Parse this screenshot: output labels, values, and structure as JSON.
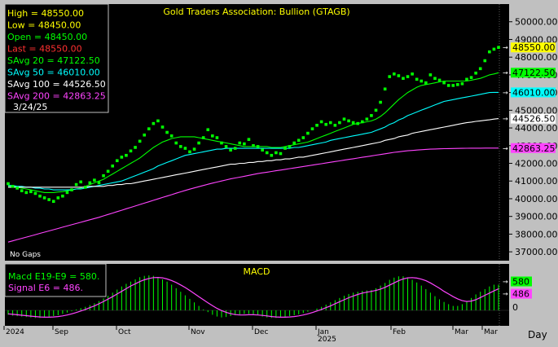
{
  "title": "Gold Traders Association: Bullion (GTAGB)",
  "info_box": {
    "lines": [
      {
        "label": "High",
        "value": "48550.00",
        "color": "#ffff00"
      },
      {
        "label": "Low",
        "value": "48450.00",
        "color": "#ffff00"
      },
      {
        "label": "Open",
        "value": "48450.00",
        "color": "#00ff00"
      },
      {
        "label": "Last",
        "value": "48550.00",
        "color": "#ff3030"
      },
      {
        "label": "SAvg 20",
        "value": "47122.50",
        "color": "#00ff00"
      },
      {
        "label": "SAvg 50",
        "value": "46010.00",
        "color": "#00ffff"
      },
      {
        "label": "SAvg 100",
        "value": "44526.50",
        "color": "#ffffff"
      },
      {
        "label": "SAvg 200",
        "value": "42863.25",
        "color": "#ff44ff"
      }
    ],
    "date": "3/24/25"
  },
  "no_gaps_label": "No Gaps",
  "macd_panel": {
    "title": "MACD",
    "legend": [
      {
        "text": "Macd  E19-E9  =  580.",
        "color": "#00ff00"
      },
      {
        "text": "Signal  E6  =  486.",
        "color": "#ff44ff"
      }
    ],
    "right_labels": [
      {
        "text": "580",
        "bg": "#00ff00",
        "fg": "#000000"
      },
      {
        "text": "486",
        "bg": "#ff44ff",
        "fg": "#000000"
      }
    ],
    "zero_label": "0"
  },
  "price_tags": [
    {
      "text": "48550.00",
      "bg": "#ffff00",
      "fg": "#000000"
    },
    {
      "text": "47122.50",
      "bg": "#00ff00",
      "fg": "#000000"
    },
    {
      "text": "46010.00",
      "bg": "#00ffff",
      "fg": "#000000"
    },
    {
      "text": "44526.50",
      "bg": "#ffffff",
      "fg": "#000000"
    },
    {
      "text": "42863.25",
      "bg": "#ff44ff",
      "fg": "#000000"
    }
  ],
  "colors": {
    "background": "#000000",
    "frame": "#c0c0c0",
    "price_dots": "#00ff00",
    "savg20": "#00ff00",
    "savg50": "#00ffff",
    "savg100": "#ffffff",
    "savg200": "#ff44ff",
    "macd": "#00ff00",
    "signal": "#ff44ff"
  },
  "chart_data": [
    {
      "type": "scatter",
      "title": "Gold Traders Association: Bullion (GTAGB)",
      "ylim": [
        36500,
        51000
      ],
      "y_ticks": [
        "37000.00",
        "38000.00",
        "39000.00",
        "40000.00",
        "41000.00",
        "42000.00",
        "43000.00",
        "44000.00",
        "45000.00",
        "46000.00",
        "47000.00",
        "48000.00",
        "49000.00",
        "50000.00"
      ],
      "x_tick_labels": [
        "2024",
        "Sep",
        "Oct",
        "Nov",
        "Dec",
        "Jan",
        "2025",
        "Feb",
        "Mar",
        "Mar"
      ],
      "x_axis_label": "Day",
      "price_series": {
        "name": "Last",
        "values": [
          40850,
          40700,
          40600,
          40450,
          40350,
          40400,
          40300,
          40150,
          40050,
          39950,
          39850,
          40050,
          40150,
          40350,
          40500,
          40800,
          40950,
          40650,
          40900,
          41050,
          40900,
          41300,
          41550,
          41850,
          42150,
          42350,
          42450,
          42700,
          42900,
          43250,
          43600,
          43950,
          44250,
          44400,
          44050,
          43750,
          43550,
          43150,
          42950,
          42850,
          42650,
          42800,
          43150,
          43450,
          43900,
          43550,
          43450,
          43150,
          42950,
          42750,
          42850,
          43150,
          43100,
          43350,
          43000,
          42950,
          42750,
          42600,
          42450,
          42600,
          42550,
          42850,
          42950,
          43150,
          43300,
          43450,
          43700,
          43950,
          44150,
          44350,
          44200,
          44300,
          44150,
          44300,
          44500,
          44400,
          44300,
          44250,
          44350,
          44500,
          44700,
          45000,
          45450,
          46200,
          46900,
          47050,
          46950,
          46800,
          46900,
          47050,
          46750,
          46650,
          46550,
          47000,
          46800,
          46700,
          46550,
          46400,
          46400,
          46450,
          46500,
          46750,
          46850,
          47100,
          47350,
          47800,
          48300,
          48450,
          48550
        ]
      },
      "sma_series": [
        {
          "name": "SAvg 20",
          "values": [
            40700,
            40700,
            40650,
            40600,
            40550,
            40500,
            40450,
            40400,
            40350,
            40350,
            40350,
            40380,
            40400,
            40450,
            40500,
            40550,
            40600,
            40700,
            40800,
            40900,
            41000,
            41100,
            41250,
            41400,
            41550,
            41700,
            41850,
            42000,
            42150,
            42300,
            42500,
            42700,
            42900,
            43050,
            43200,
            43300,
            43400,
            43450,
            43500,
            43500,
            43500,
            43500,
            43450,
            43400,
            43350,
            43300,
            43250,
            43200,
            43150,
            43100,
            43050,
            43000,
            42950,
            42950,
            42950,
            42950,
            42950,
            42950,
            42900,
            42900,
            42900,
            42950,
            43000,
            43050,
            43100,
            43150,
            43200,
            43300,
            43400,
            43500,
            43600,
            43700,
            43800,
            43900,
            44000,
            44100,
            44200,
            44250,
            44300,
            44350,
            44400,
            44500,
            44650,
            44850,
            45100,
            45350,
            45600,
            45800,
            46000,
            46150,
            46300,
            46400,
            46450,
            46500,
            46550,
            46600,
            46650,
            46650,
            46650,
            46650,
            46650,
            46650,
            46700,
            46750,
            46800,
            46900,
            47000,
            47050,
            47120
          ]
        },
        {
          "name": "SAvg 50",
          "values": [
            40750,
            40750,
            40700,
            40700,
            40650,
            40650,
            40600,
            40600,
            40550,
            40550,
            40500,
            40500,
            40500,
            40500,
            40500,
            40550,
            40550,
            40600,
            40650,
            40700,
            40750,
            40800,
            40850,
            40900,
            40950,
            41000,
            41100,
            41200,
            41300,
            41400,
            41500,
            41600,
            41700,
            41850,
            41950,
            42050,
            42150,
            42250,
            42350,
            42450,
            42500,
            42550,
            42600,
            42650,
            42700,
            42750,
            42800,
            42800,
            42850,
            42850,
            42850,
            42850,
            42850,
            42850,
            42850,
            42850,
            42850,
            42850,
            42850,
            42850,
            42850,
            42850,
            42850,
            42900,
            42900,
            42950,
            43000,
            43050,
            43100,
            43150,
            43200,
            43300,
            43350,
            43400,
            43450,
            43500,
            43550,
            43600,
            43650,
            43700,
            43750,
            43850,
            43950,
            44050,
            44200,
            44300,
            44450,
            44550,
            44700,
            44800,
            44900,
            45000,
            45100,
            45200,
            45300,
            45400,
            45500,
            45550,
            45600,
            45650,
            45700,
            45750,
            45800,
            45850,
            45900,
            45950,
            46000,
            46010,
            46010
          ]
        },
        {
          "name": "SAvg 100",
          "values": [
            40650,
            40650,
            40650,
            40650,
            40650,
            40650,
            40650,
            40650,
            40650,
            40650,
            40650,
            40650,
            40650,
            40650,
            40650,
            40650,
            40650,
            40650,
            40700,
            40700,
            40700,
            40700,
            40750,
            40750,
            40800,
            40800,
            40850,
            40850,
            40900,
            40950,
            41000,
            41050,
            41100,
            41150,
            41200,
            41250,
            41300,
            41350,
            41400,
            41450,
            41500,
            41550,
            41600,
            41650,
            41700,
            41750,
            41800,
            41850,
            41900,
            41950,
            41950,
            42000,
            42000,
            42050,
            42050,
            42100,
            42100,
            42150,
            42150,
            42200,
            42200,
            42250,
            42250,
            42300,
            42350,
            42350,
            42400,
            42450,
            42500,
            42550,
            42600,
            42650,
            42700,
            42750,
            42800,
            42850,
            42900,
            42950,
            43000,
            43050,
            43100,
            43150,
            43200,
            43300,
            43350,
            43400,
            43500,
            43550,
            43600,
            43700,
            43750,
            43800,
            43850,
            43900,
            43950,
            44000,
            44050,
            44100,
            44150,
            44200,
            44250,
            44300,
            44330,
            44370,
            44400,
            44430,
            44460,
            44500,
            44526
          ]
        },
        {
          "name": "SAvg 200",
          "values": [
            37550,
            37620,
            37690,
            37760,
            37830,
            37900,
            37970,
            38040,
            38110,
            38180,
            38250,
            38320,
            38390,
            38460,
            38530,
            38600,
            38670,
            38740,
            38810,
            38880,
            38950,
            39030,
            39110,
            39190,
            39270,
            39350,
            39430,
            39510,
            39590,
            39670,
            39750,
            39830,
            39910,
            39990,
            40070,
            40150,
            40230,
            40310,
            40390,
            40470,
            40540,
            40610,
            40680,
            40750,
            40820,
            40880,
            40940,
            41000,
            41060,
            41120,
            41170,
            41220,
            41270,
            41320,
            41370,
            41420,
            41460,
            41500,
            41540,
            41580,
            41620,
            41660,
            41700,
            41740,
            41780,
            41820,
            41860,
            41900,
            41940,
            41980,
            42020,
            42060,
            42100,
            42140,
            42180,
            42220,
            42260,
            42300,
            42340,
            42380,
            42420,
            42460,
            42500,
            42540,
            42580,
            42620,
            42650,
            42680,
            42710,
            42730,
            42750,
            42770,
            42790,
            42800,
            42810,
            42820,
            42830,
            42835,
            42840,
            42845,
            42850,
            42853,
            42855,
            42857,
            42859,
            42860,
            42861,
            42862,
            42863
          ]
        }
      ]
    },
    {
      "type": "bar",
      "title": "MACD",
      "ylim": [
        -350,
        1050
      ],
      "y_ticks": [
        "0"
      ],
      "series": [
        {
          "name": "Macd E19-E9",
          "values": [
            -100,
            -120,
            -130,
            -140,
            -150,
            -160,
            -170,
            -170,
            -160,
            -150,
            -130,
            -110,
            -80,
            -50,
            -20,
            20,
            50,
            80,
            120,
            160,
            210,
            270,
            330,
            400,
            470,
            540,
            600,
            650,
            700,
            750,
            780,
            790,
            780,
            750,
            700,
            650,
            580,
            500,
            420,
            340,
            260,
            180,
            100,
            20,
            -40,
            -100,
            -140,
            -160,
            -150,
            -130,
            -110,
            -90,
            -80,
            -80,
            -90,
            -110,
            -140,
            -160,
            -170,
            -170,
            -160,
            -150,
            -130,
            -110,
            -90,
            -60,
            -30,
            0,
            40,
            80,
            130,
            180,
            230,
            280,
            330,
            370,
            400,
            420,
            440,
            450,
            460,
            500,
            560,
            620,
            690,
            740,
            770,
            770,
            740,
            690,
            630,
            560,
            480,
            400,
            320,
            250,
            190,
            140,
            100,
            100,
            140,
            200,
            280,
            360,
            420,
            480,
            540,
            580,
            580
          ]
        },
        {
          "name": "Signal E6",
          "values": [
            -80,
            -90,
            -100,
            -110,
            -120,
            -130,
            -140,
            -150,
            -155,
            -155,
            -150,
            -140,
            -125,
            -105,
            -80,
            -50,
            -15,
            20,
            60,
            100,
            150,
            200,
            255,
            310,
            370,
            430,
            490,
            550,
            600,
            650,
            690,
            720,
            740,
            745,
            735,
            710,
            675,
            630,
            575,
            515,
            450,
            380,
            310,
            240,
            170,
            105,
            45,
            -5,
            -45,
            -75,
            -95,
            -105,
            -105,
            -100,
            -100,
            -105,
            -115,
            -125,
            -140,
            -150,
            -155,
            -155,
            -150,
            -140,
            -125,
            -105,
            -80,
            -50,
            -15,
            20,
            60,
            100,
            150,
            195,
            240,
            285,
            325,
            360,
            390,
            410,
            430,
            450,
            480,
            520,
            570,
            620,
            670,
            710,
            735,
            740,
            730,
            705,
            670,
            620,
            560,
            500,
            430,
            370,
            310,
            260,
            220,
            200,
            210,
            240,
            290,
            340,
            390,
            440,
            486
          ]
        }
      ],
      "x_tick_labels": [
        "2024",
        "Sep",
        "Oct",
        "Nov",
        "Dec",
        "Jan",
        "2025",
        "Feb",
        "Mar",
        "Mar"
      ]
    }
  ]
}
